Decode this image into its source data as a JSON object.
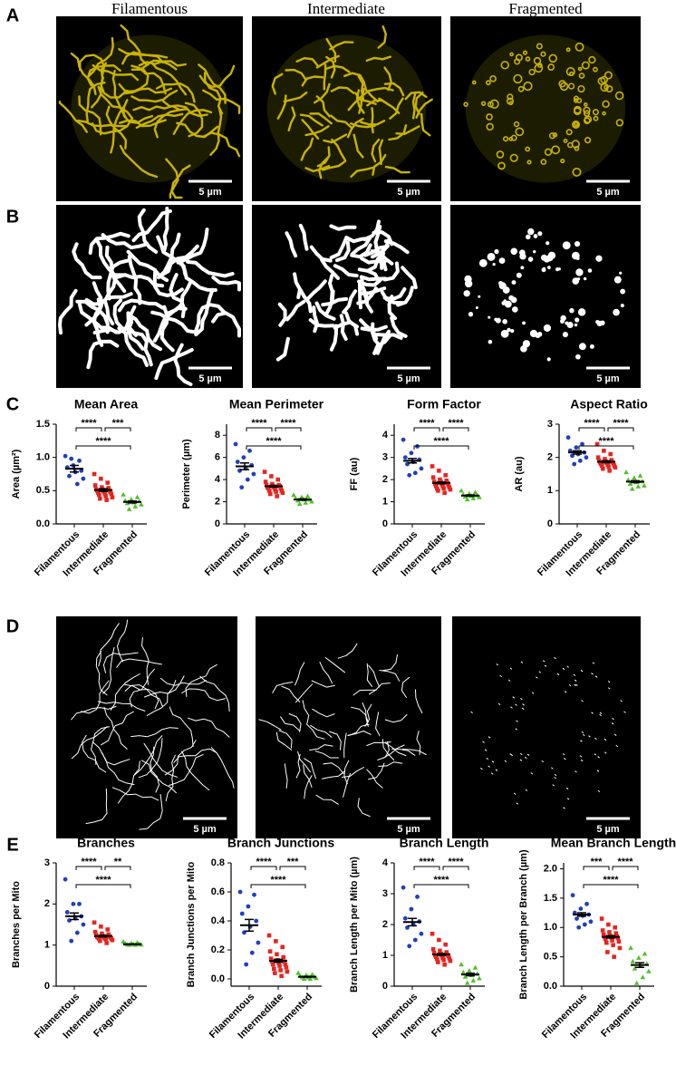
{
  "column_titles": [
    "Filamentous",
    "Intermediate",
    "Fragmented"
  ],
  "image_panels": [
    {
      "label": "A",
      "scale_bars": [
        "5 µm",
        "5 µm",
        "5 µm"
      ]
    },
    {
      "label": "B",
      "scale_bars": [
        "5 µm",
        "5 µm",
        "5 µm"
      ]
    },
    {
      "label": "D",
      "scale_bars": [
        "5 µm",
        "5 µm",
        "5 µm"
      ]
    }
  ],
  "chart_panels": [
    {
      "label": "C"
    },
    {
      "label": "E"
    }
  ],
  "chart_data": [
    {
      "type": "strip",
      "title": "Mean Area",
      "y_label": "Area (µm²)",
      "categories": [
        "Filamentous",
        "Intermediate",
        "Fragmented"
      ],
      "colors": [
        "#1f3fbf",
        "#e8241f",
        "#4fbf2a"
      ],
      "markers": [
        "circle",
        "square",
        "triangle"
      ],
      "values": [
        [
          1.02,
          0.95,
          0.88,
          0.85,
          0.8,
          0.78,
          0.72,
          0.68,
          0.6,
          0.98
        ],
        [
          0.75,
          0.68,
          0.62,
          0.58,
          0.55,
          0.54,
          0.52,
          0.51,
          0.5,
          0.5,
          0.49,
          0.48,
          0.47,
          0.46,
          0.45,
          0.44,
          0.42,
          0.4,
          0.38,
          0.36
        ],
        [
          0.44,
          0.4,
          0.37,
          0.35,
          0.34,
          0.32,
          0.31,
          0.29,
          0.26,
          0.22
        ]
      ],
      "means": [
        0.83,
        0.51,
        0.33
      ],
      "errors": [
        0.05,
        0.02,
        0.015
      ],
      "ylim": [
        0,
        1.5
      ],
      "yticks": [
        {
          "value": 0,
          "label": "0.0"
        },
        {
          "value": 0.5,
          "label": "0.5"
        },
        {
          "value": 1,
          "label": "1.0"
        },
        {
          "value": 1.5,
          "label": "1.5"
        }
      ],
      "brackets": [
        {
          "from": 0,
          "to": 1,
          "label": "****"
        },
        {
          "from": 1,
          "to": 2,
          "label": "***"
        },
        {
          "from": 0,
          "to": 2,
          "label": "****"
        }
      ]
    },
    {
      "type": "strip",
      "title": "Mean Perimeter",
      "y_label": "Perimeter (µm)",
      "categories": [
        "Filamentous",
        "Intermediate",
        "Fragmented"
      ],
      "colors": [
        "#1f3fbf",
        "#e8241f",
        "#4fbf2a"
      ],
      "markers": [
        "circle",
        "square",
        "triangle"
      ],
      "values": [
        [
          7.2,
          6.6,
          6.0,
          5.6,
          5.3,
          5.0,
          4.8,
          4.5,
          4.0,
          3.3
        ],
        [
          4.7,
          4.3,
          4.0,
          3.8,
          3.6,
          3.5,
          3.5,
          3.4,
          3.4,
          3.3,
          3.3,
          3.2,
          3.2,
          3.1,
          3.0,
          3.0,
          2.9,
          2.8,
          2.7,
          2.5
        ],
        [
          2.6,
          2.5,
          2.4,
          2.3,
          2.2,
          2.2,
          2.1,
          2.0,
          1.9,
          1.8
        ]
      ],
      "means": [
        5.2,
        3.4,
        2.2
      ],
      "errors": [
        0.3,
        0.08,
        0.06
      ],
      "ylim": [
        0,
        9
      ],
      "yticks": [
        0,
        2,
        4,
        6,
        8
      ],
      "brackets": [
        {
          "from": 0,
          "to": 1,
          "label": "****"
        },
        {
          "from": 1,
          "to": 2,
          "label": "****"
        },
        {
          "from": 0,
          "to": 2,
          "label": "****"
        }
      ]
    },
    {
      "type": "strip",
      "title": "Form Factor",
      "y_label": "FF (au)",
      "categories": [
        "Filamentous",
        "Intermediate",
        "Fragmented"
      ],
      "colors": [
        "#1f3fbf",
        "#e8241f",
        "#4fbf2a"
      ],
      "markers": [
        "circle",
        "square",
        "triangle"
      ],
      "values": [
        [
          3.8,
          3.5,
          3.2,
          3.0,
          2.9,
          2.8,
          2.7,
          2.5,
          2.3,
          2.2
        ],
        [
          2.6,
          2.4,
          2.2,
          2.1,
          2.0,
          1.95,
          1.9,
          1.9,
          1.85,
          1.8,
          1.8,
          1.75,
          1.7,
          1.7,
          1.65,
          1.6,
          1.6,
          1.55,
          1.5,
          1.4
        ],
        [
          1.5,
          1.42,
          1.36,
          1.32,
          1.28,
          1.26,
          1.22,
          1.2,
          1.15,
          1.1
        ]
      ],
      "means": [
        2.85,
        1.85,
        1.28
      ],
      "errors": [
        0.1,
        0.04,
        0.03
      ],
      "ylim": [
        0,
        4.5
      ],
      "yticks": [
        0,
        1,
        2,
        3,
        4
      ],
      "brackets": [
        {
          "from": 0,
          "to": 1,
          "label": "****"
        },
        {
          "from": 1,
          "to": 2,
          "label": "****"
        },
        {
          "from": 0,
          "to": 2,
          "label": "****"
        }
      ]
    },
    {
      "type": "strip",
      "title": "Aspect Ratio",
      "y_label": "AR (au)",
      "categories": [
        "Filamentous",
        "Intermediate",
        "Fragmented"
      ],
      "colors": [
        "#1f3fbf",
        "#e8241f",
        "#4fbf2a"
      ],
      "markers": [
        "circle",
        "square",
        "triangle"
      ],
      "values": [
        [
          2.6,
          2.4,
          2.3,
          2.2,
          2.15,
          2.1,
          2.05,
          2.0,
          1.9,
          1.8
        ],
        [
          2.4,
          2.2,
          2.1,
          2.0,
          1.95,
          1.92,
          1.9,
          1.88,
          1.86,
          1.85,
          1.84,
          1.82,
          1.8,
          1.78,
          1.76,
          1.75,
          1.72,
          1.7,
          1.66,
          1.6
        ],
        [
          1.55,
          1.45,
          1.38,
          1.32,
          1.28,
          1.25,
          1.2,
          1.15,
          1.12,
          1.05
        ]
      ],
      "means": [
        2.15,
        1.87,
        1.27
      ],
      "errors": [
        0.05,
        0.03,
        0.03
      ],
      "ylim": [
        0,
        3
      ],
      "yticks": [
        0,
        1,
        2,
        3
      ],
      "brackets": [
        {
          "from": 0,
          "to": 1,
          "label": "****"
        },
        {
          "from": 1,
          "to": 2,
          "label": "****"
        },
        {
          "from": 0,
          "to": 2,
          "label": "****"
        }
      ]
    },
    {
      "type": "strip",
      "title": "Branches",
      "y_label": "Branches per Mito",
      "categories": [
        "Filamentous",
        "Intermediate",
        "Fragmented"
      ],
      "colors": [
        "#1f3fbf",
        "#e8241f",
        "#4fbf2a"
      ],
      "markers": [
        "circle",
        "square",
        "triangle"
      ],
      "values": [
        [
          2.6,
          2.0,
          2.0,
          1.8,
          1.7,
          1.65,
          1.6,
          1.5,
          1.3,
          1.1
        ],
        [
          1.55,
          1.45,
          1.38,
          1.32,
          1.28,
          1.26,
          1.24,
          1.22,
          1.21,
          1.2,
          1.2,
          1.19,
          1.18,
          1.17,
          1.16,
          1.15,
          1.14,
          1.12,
          1.1,
          1.05
        ],
        [
          1.08,
          1.06,
          1.04,
          1.03,
          1.02,
          1.02,
          1.01,
          1.01,
          1.0,
          1.0
        ]
      ],
      "means": [
        1.7,
        1.22,
        1.02
      ],
      "errors": [
        0.08,
        0.02,
        0.005
      ],
      "ylim": [
        0,
        3
      ],
      "yticks": [
        0,
        1,
        2,
        3
      ],
      "brackets": [
        {
          "from": 0,
          "to": 1,
          "label": "****"
        },
        {
          "from": 1,
          "to": 2,
          "label": "**"
        },
        {
          "from": 0,
          "to": 2,
          "label": "****"
        }
      ]
    },
    {
      "type": "strip",
      "title": "Branch Junctions",
      "y_label": "Branch Junctions per Mito",
      "categories": [
        "Filamentous",
        "Intermediate",
        "Fragmented"
      ],
      "colors": [
        "#1f3fbf",
        "#e8241f",
        "#4fbf2a"
      ],
      "markers": [
        "circle",
        "square",
        "triangle"
      ],
      "values": [
        [
          0.6,
          0.58,
          0.5,
          0.45,
          0.4,
          0.36,
          0.32,
          0.25,
          0.18,
          0.1
        ],
        [
          0.3,
          0.26,
          0.22,
          0.19,
          0.17,
          0.15,
          0.14,
          0.13,
          0.12,
          0.12,
          0.11,
          0.1,
          0.1,
          0.09,
          0.08,
          0.07,
          0.06,
          0.05,
          0.04,
          0.02
        ],
        [
          0.04,
          0.03,
          0.025,
          0.02,
          0.015,
          0.01,
          0.01,
          0.005,
          0.0,
          0.0
        ]
      ],
      "means": [
        0.37,
        0.125,
        0.015
      ],
      "errors": [
        0.04,
        0.01,
        0.003
      ],
      "ylim": [
        -0.05,
        0.8
      ],
      "yticks": [
        {
          "value": 0,
          "label": "0.0"
        },
        {
          "value": 0.2,
          "label": "0.2"
        },
        {
          "value": 0.4,
          "label": "0.4"
        },
        {
          "value": 0.6,
          "label": "0.6"
        },
        {
          "value": 0.8,
          "label": "0.8"
        }
      ],
      "brackets": [
        {
          "from": 0,
          "to": 1,
          "label": "****"
        },
        {
          "from": 1,
          "to": 2,
          "label": "***"
        },
        {
          "from": 0,
          "to": 2,
          "label": "****"
        }
      ]
    },
    {
      "type": "strip",
      "title": "Branch Length",
      "y_label": "Branch Length per Mito (µm)",
      "categories": [
        "Filamentous",
        "Intermediate",
        "Fragmented"
      ],
      "colors": [
        "#1f3fbf",
        "#e8241f",
        "#4fbf2a"
      ],
      "markers": [
        "circle",
        "square",
        "triangle"
      ],
      "values": [
        [
          3.2,
          2.9,
          2.5,
          2.2,
          2.1,
          2.0,
          1.9,
          1.7,
          1.5,
          1.3
        ],
        [
          1.7,
          1.5,
          1.35,
          1.2,
          1.15,
          1.1,
          1.08,
          1.05,
          1.02,
          1.0,
          1.0,
          0.98,
          0.95,
          0.92,
          0.9,
          0.88,
          0.85,
          0.82,
          0.78,
          0.7
        ],
        [
          0.7,
          0.6,
          0.5,
          0.45,
          0.4,
          0.35,
          0.3,
          0.25,
          0.18,
          0.1
        ]
      ],
      "means": [
        2.08,
        1.03,
        0.38
      ],
      "errors": [
        0.12,
        0.03,
        0.04
      ],
      "ylim": [
        0,
        4
      ],
      "yticks": [
        0,
        1,
        2,
        3,
        4
      ],
      "brackets": [
        {
          "from": 0,
          "to": 1,
          "label": "****"
        },
        {
          "from": 1,
          "to": 2,
          "label": "****"
        },
        {
          "from": 0,
          "to": 2,
          "label": "****"
        }
      ]
    },
    {
      "type": "strip",
      "title": "Mean Branch Length",
      "y_label": "Branch Length per Branch (µm)",
      "categories": [
        "Filamentous",
        "Intermediate",
        "Fragmented"
      ],
      "colors": [
        "#1f3fbf",
        "#e8241f",
        "#4fbf2a"
      ],
      "markers": [
        "circle",
        "square",
        "triangle"
      ],
      "values": [
        [
          1.55,
          1.4,
          1.32,
          1.25,
          1.22,
          1.2,
          1.15,
          1.1,
          1.05,
          1.0
        ],
        [
          1.15,
          1.05,
          1.0,
          0.95,
          0.92,
          0.9,
          0.88,
          0.86,
          0.85,
          0.84,
          0.83,
          0.82,
          0.8,
          0.78,
          0.76,
          0.74,
          0.7,
          0.65,
          0.58,
          0.5
        ],
        [
          0.65,
          0.55,
          0.48,
          0.42,
          0.38,
          0.35,
          0.3,
          0.25,
          0.15,
          0.05
        ]
      ],
      "means": [
        1.22,
        0.84,
        0.36
      ],
      "errors": [
        0.03,
        0.02,
        0.04
      ],
      "ylim": [
        0,
        2.1
      ],
      "yticks": [
        {
          "value": 0,
          "label": "0.0"
        },
        {
          "value": 0.5,
          "label": "0.5"
        },
        {
          "value": 1,
          "label": "1.0"
        },
        {
          "value": 1.5,
          "label": "1.5"
        },
        {
          "value": 2,
          "label": "2.0"
        }
      ],
      "brackets": [
        {
          "from": 0,
          "to": 1,
          "label": "***"
        },
        {
          "from": 1,
          "to": 2,
          "label": "****"
        },
        {
          "from": 0,
          "to": 2,
          "label": "****"
        }
      ]
    }
  ]
}
